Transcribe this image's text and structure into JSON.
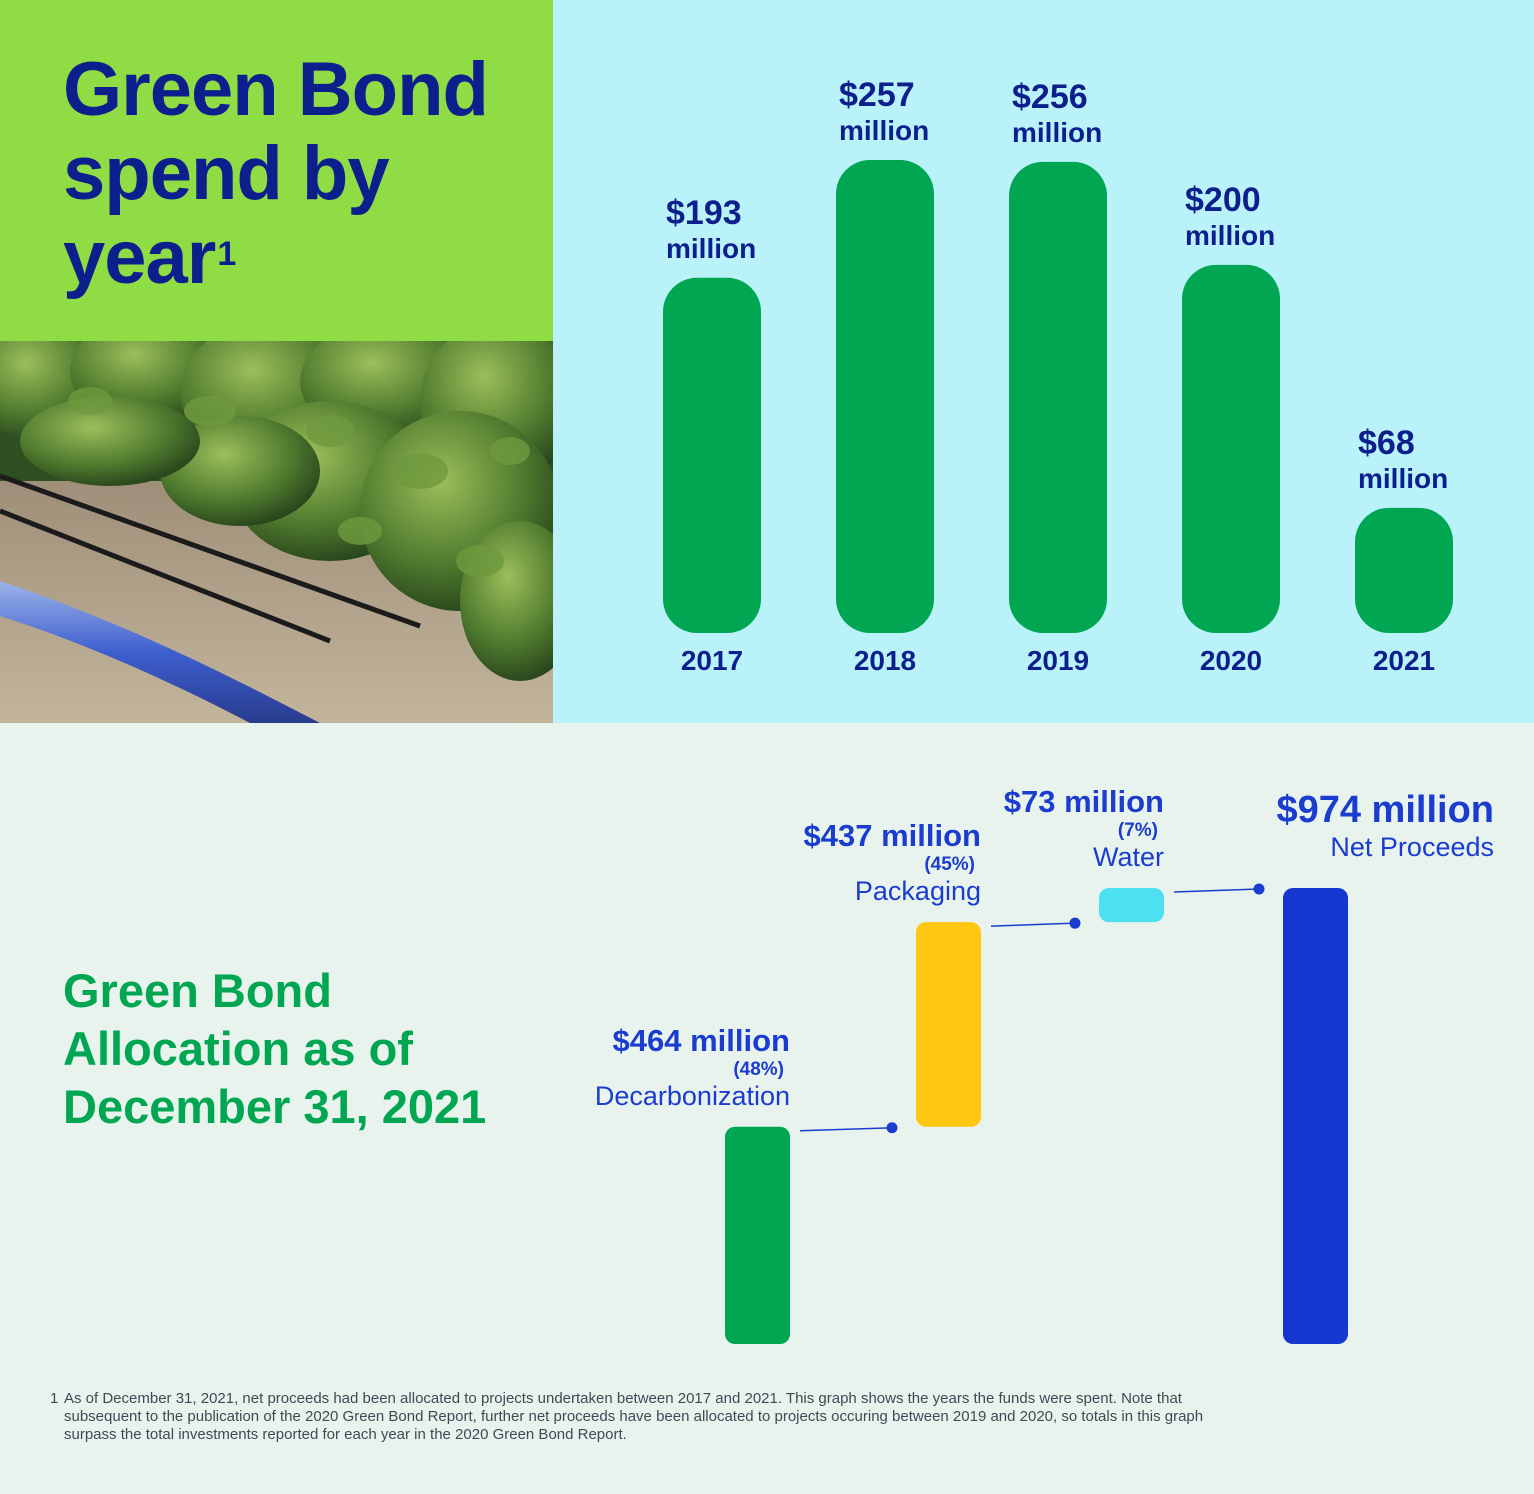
{
  "top": {
    "title": "Green Bond spend by year",
    "title_superscript": "1",
    "colors": {
      "title_bg": "#8fdc44",
      "chart_bg": "#b9f2f8",
      "bar": "#00a651",
      "text": "#0d1f8c"
    }
  },
  "bottom": {
    "title": "Green Bond Allocation as of December 31, 2021",
    "colors": {
      "Decarbonization": "#00a651",
      "Packaging": "#ffc612",
      "Water": "#4de0f0",
      "Net Proceeds": "#1438cf"
    }
  },
  "chart_data": [
    {
      "type": "bar",
      "title": "Green Bond spend by year",
      "categories": [
        "2017",
        "2018",
        "2019",
        "2020",
        "2021"
      ],
      "values": [
        193,
        257,
        256,
        200,
        68
      ],
      "value_labels": [
        "$193",
        "$257",
        "$256",
        "$200",
        "$68"
      ],
      "unit_label": "million",
      "xlabel": "",
      "ylabel": "",
      "grid": false
    },
    {
      "type": "bar",
      "subtype": "waterfall",
      "title": "Green Bond Allocation as of December 31, 2021",
      "categories": [
        "Decarbonization",
        "Packaging",
        "Water",
        "Net Proceeds"
      ],
      "values": [
        464,
        437,
        73,
        974
      ],
      "value_labels": [
        "$464 million",
        "$437 million",
        "$73 million",
        "$974 million"
      ],
      "percent_labels": [
        "(48%)",
        "(45%)",
        "(7%)",
        ""
      ],
      "grid": false
    }
  ],
  "footnote": {
    "number": "1",
    "text": "As of December 31, 2021, net proceeds had been allocated to projects undertaken between 2017 and 2021. This graph shows the years the funds were spent. Note that subsequent to the publication of the 2020 Green Bond Report, further net proceeds have been allocated to projects occuring between 2019 and 2020, so totals in this graph surpass the total investments reported for each year in the 2020 Green Bond Report."
  }
}
